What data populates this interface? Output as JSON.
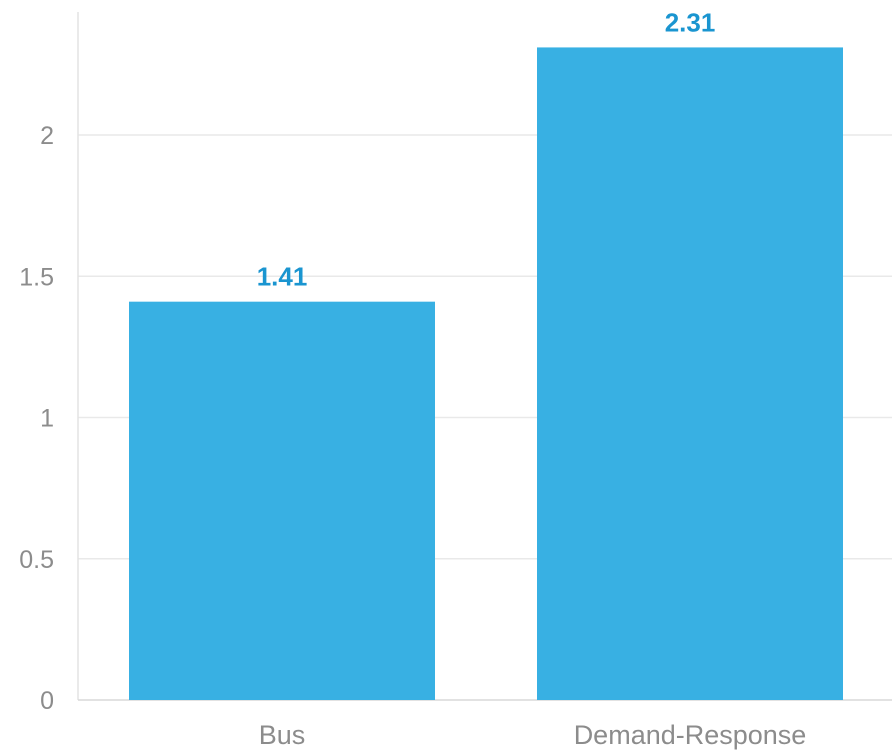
{
  "colors": {
    "bar": "#38b0e3",
    "label": "#1a95d0",
    "tick": "#8c8c8c",
    "grid": "#e9e9e9"
  },
  "chart_data": {
    "type": "bar",
    "title": "",
    "xlabel": "",
    "ylabel": "",
    "categories": [
      "Bus",
      "Demand-Response"
    ],
    "values": [
      1.41,
      2.31
    ],
    "value_labels": [
      "1.41",
      "2.31"
    ],
    "ylim": [
      0,
      2.4
    ],
    "yticks": [
      0,
      0.5,
      1,
      1.5,
      2
    ],
    "ytick_labels": [
      "0",
      "0.5",
      "1",
      "1.5",
      "2"
    ],
    "grid": true,
    "legend": "none"
  }
}
